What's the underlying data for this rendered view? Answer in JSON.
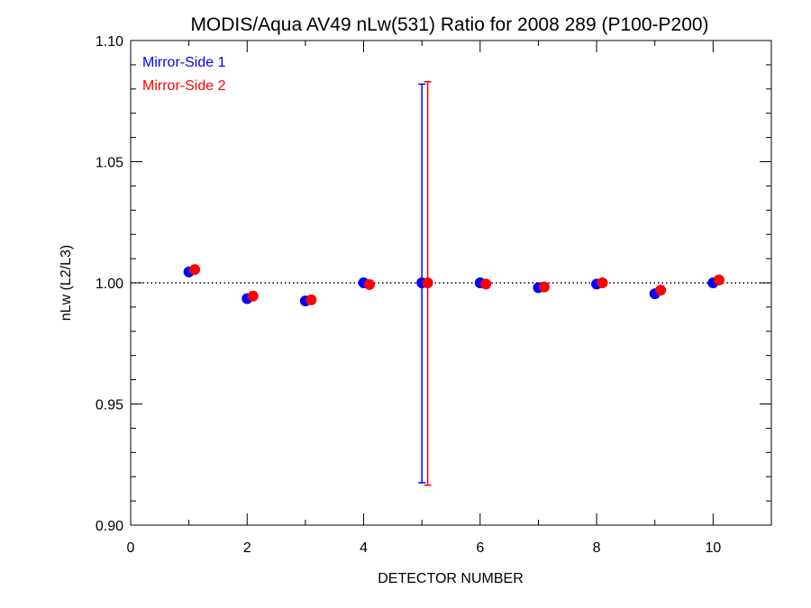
{
  "chart_data": {
    "type": "scatter",
    "title": "MODIS/Aqua AV49 nLw(531) Ratio for 2008 289 (P100-P200)",
    "xlabel": "DETECTOR NUMBER",
    "ylabel": "nLw (L2/L3)",
    "xlim": [
      0,
      11
    ],
    "ylim": [
      0.9,
      1.1
    ],
    "x_ticks": [
      0,
      2,
      4,
      6,
      8,
      10
    ],
    "y_ticks": [
      0.9,
      0.95,
      1.0,
      1.05,
      1.1
    ],
    "x_tick_labels": [
      "0",
      "2",
      "4",
      "6",
      "8",
      "10"
    ],
    "y_tick_labels": [
      "0.90",
      "0.95",
      "1.00",
      "1.05",
      "1.10"
    ],
    "reference_line": {
      "y": 1.0,
      "style": "dotted"
    },
    "legend_position": "top-left",
    "series": [
      {
        "name": "Mirror-Side 1",
        "color": "#0000ff",
        "x": [
          1,
          2,
          3,
          4,
          5,
          6,
          7,
          8,
          9,
          10
        ],
        "y": [
          1.0045,
          0.9935,
          0.9925,
          1.0,
          1.0,
          1.0,
          0.998,
          0.9995,
          0.9955,
          1.0
        ],
        "error_bars": [
          {
            "x": 5,
            "low": 0.9175,
            "high": 1.082
          }
        ]
      },
      {
        "name": "Mirror-Side 2",
        "color": "#ff0000",
        "x": [
          1.1,
          2.1,
          3.1,
          4.1,
          5.1,
          6.1,
          7.1,
          8.1,
          9.1,
          10.1
        ],
        "y": [
          1.0055,
          0.9945,
          0.993,
          0.9993,
          1.0,
          0.9995,
          0.9983,
          1.0,
          0.997,
          1.0012
        ],
        "error_bars": [
          {
            "x": 5.1,
            "low": 0.9165,
            "high": 1.083
          }
        ]
      }
    ]
  }
}
